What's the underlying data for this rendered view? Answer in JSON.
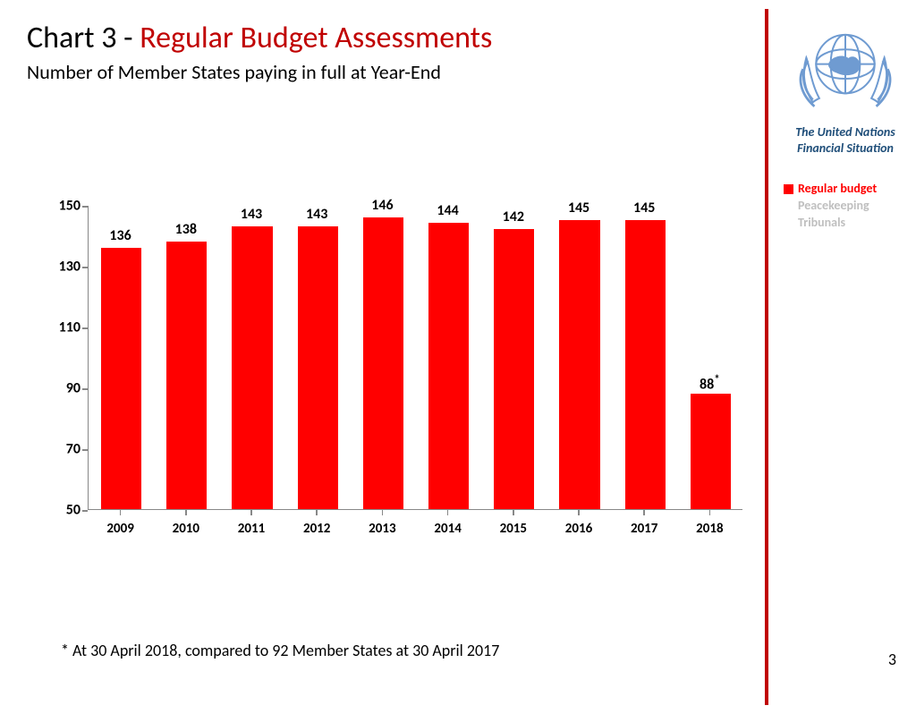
{
  "title": {
    "prefix": "Chart 3 - ",
    "main": "Regular Budget Assessments",
    "prefix_color": "#000000",
    "main_color": "#c00000",
    "fontsize": 34
  },
  "subtitle": {
    "text": "Number of Member States paying in full at Year-End",
    "color": "#000000",
    "fontsize": 22
  },
  "divider": {
    "color": "#c00000",
    "x": 855,
    "width": 4
  },
  "sidebar": {
    "logo_color": "#6f9bd1",
    "caption_line1": "The United Nations",
    "caption_line2": "Financial Situation",
    "caption_color": "#1f4e79",
    "legend": [
      {
        "label": "Regular budget",
        "color": "#ff0000",
        "active": true,
        "swatch": true
      },
      {
        "label": "Peacekeeping",
        "color": "#bfbfbf",
        "active": false,
        "swatch": false
      },
      {
        "label": "Tribunals",
        "color": "#bfbfbf",
        "active": false,
        "swatch": false
      }
    ]
  },
  "chart": {
    "type": "bar",
    "categories": [
      "2009",
      "2010",
      "2011",
      "2012",
      "2013",
      "2014",
      "2015",
      "2016",
      "2017",
      "2018"
    ],
    "values": [
      136,
      138,
      143,
      143,
      146,
      144,
      142,
      145,
      145,
      88
    ],
    "value_labels": [
      "136",
      "138",
      "143",
      "143",
      "146",
      "144",
      "142",
      "145",
      "145",
      "88*"
    ],
    "bar_color": "#ff0000",
    "ylim": [
      50,
      150
    ],
    "yticks": [
      50,
      70,
      90,
      110,
      130,
      150
    ],
    "axis_color": "#888888",
    "label_fontsize": 16,
    "label_fontweight": "700",
    "tick_fontsize": 16,
    "xtick_fontsize": 15,
    "bar_width_ratio": 0.62,
    "background_color": "#ffffff"
  },
  "footnote": "* At 30 April 2018, compared to 92 Member States at 30 April 2017",
  "page_number": "3"
}
